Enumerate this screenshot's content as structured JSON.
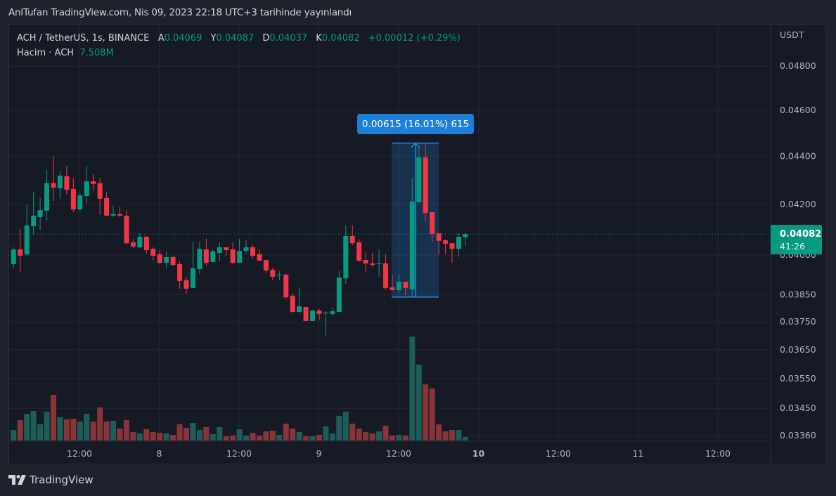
{
  "header": {
    "published": "AnlTufan TradingView.com, Nis 09, 2023 22:18 UTC+3 tarihinde yayınlandı"
  },
  "legend": {
    "symbol": "ACH / TetherUS, 1s, BINANCE",
    "open_label": "A",
    "open": "0.04069",
    "high_label": "Y",
    "high": "0.04087",
    "low_label": "D",
    "low": "0.04037",
    "close_label": "K",
    "close": "0.04082",
    "change": "+0.00012 (+0.29%)",
    "volume_label": "Hacim · ACH",
    "volume": "7.508M"
  },
  "price_axis": {
    "unit": "USDT",
    "ticks": [
      "0.04800",
      "0.04600",
      "0.04400",
      "0.04200",
      "0.04000",
      "0.03850",
      "0.03750",
      "0.03650",
      "0.03550",
      "0.03450",
      "0.03360"
    ],
    "scale": "log"
  },
  "time_axis": {
    "ticks": [
      "12:00",
      "8",
      "12:00",
      "9",
      "12:00",
      "10",
      "12:00",
      "11",
      "12:00"
    ]
  },
  "last_price": {
    "value": "0.04082",
    "countdown": "41:26"
  },
  "measure": {
    "label": "0.00615 (16.01%) 615",
    "low": 0.03841,
    "high": 0.04456
  },
  "footer": {
    "brand": "TradingView"
  },
  "colors": {
    "up": "#089981",
    "down": "#f23645",
    "up_volume": "#1e5d5a",
    "down_volume": "#873538",
    "measure": "#2196f3",
    "background": "#161a25"
  },
  "chart_data": {
    "type": "candlestick",
    "candles": [
      [
        0.03965,
        0.04022,
        0.0403,
        0.03951
      ],
      [
        0.04022,
        0.03997,
        0.04102,
        0.03935
      ],
      [
        0.04003,
        0.04116,
        0.042,
        0.03997
      ],
      [
        0.04113,
        0.04155,
        0.04252,
        0.04079
      ],
      [
        0.04149,
        0.04177,
        0.04226,
        0.04096
      ],
      [
        0.04175,
        0.04287,
        0.04342,
        0.04135
      ],
      [
        0.04287,
        0.04269,
        0.04401,
        0.04214
      ],
      [
        0.04266,
        0.04318,
        0.04336,
        0.04223
      ],
      [
        0.04316,
        0.0426,
        0.0436,
        0.0424
      ],
      [
        0.04263,
        0.0418,
        0.04307,
        0.04169
      ],
      [
        0.0418,
        0.04237,
        0.04246,
        0.04175
      ],
      [
        0.04234,
        0.04295,
        0.0436,
        0.04206
      ],
      [
        0.04295,
        0.04284,
        0.04324,
        0.04257
      ],
      [
        0.04287,
        0.04223,
        0.0431,
        0.04158
      ],
      [
        0.04226,
        0.04155,
        0.04252,
        0.04155
      ],
      [
        0.04155,
        0.04161,
        0.04195,
        0.04152
      ],
      [
        0.04161,
        0.04155,
        0.04192,
        0.04149
      ],
      [
        0.04155,
        0.04046,
        0.04177,
        0.04041
      ],
      [
        0.04049,
        0.04033,
        0.04063,
        0.04027
      ],
      [
        0.0403,
        0.04071,
        0.04085,
        0.04027
      ],
      [
        0.04071,
        0.04019,
        0.04074,
        0.04005
      ],
      [
        0.04024,
        0.03997,
        0.0403,
        0.03978
      ],
      [
        0.04003,
        0.0397,
        0.04016,
        0.03965
      ],
      [
        0.0397,
        0.03992,
        0.04014,
        0.03951
      ],
      [
        0.03992,
        0.03962,
        0.03995,
        0.03959
      ],
      [
        0.03965,
        0.03901,
        0.03976,
        0.03872
      ],
      [
        0.03904,
        0.03872,
        0.03917,
        0.03854
      ],
      [
        0.03875,
        0.03949,
        0.04052,
        0.03875
      ],
      [
        0.03946,
        0.04024,
        0.04052,
        0.03927
      ],
      [
        0.04022,
        0.0397,
        0.04063,
        0.03959
      ],
      [
        0.03973,
        0.04014,
        0.04022,
        0.03973
      ],
      [
        0.04008,
        0.0403,
        0.04049,
        0.03976
      ],
      [
        0.0403,
        0.04019,
        0.0403,
        0.03997
      ],
      [
        0.04022,
        0.0397,
        0.04049,
        0.03965
      ],
      [
        0.0397,
        0.04016,
        0.04063,
        0.0397
      ],
      [
        0.04016,
        0.0403,
        0.04057,
        0.04005
      ],
      [
        0.0403,
        0.03997,
        0.04041,
        0.03986
      ],
      [
        0.04003,
        0.03978,
        0.04022,
        0.03978
      ],
      [
        0.03981,
        0.03941,
        0.03981,
        0.03933
      ],
      [
        0.03943,
        0.03917,
        0.03951,
        0.03904
      ],
      [
        0.03922,
        0.03925,
        0.03938,
        0.03904
      ],
      [
        0.03925,
        0.0384,
        0.0393,
        0.03833
      ],
      [
        0.03846,
        0.03786,
        0.03854,
        0.03784
      ],
      [
        0.03786,
        0.03807,
        0.03877,
        0.03784
      ],
      [
        0.03804,
        0.03753,
        0.03804,
        0.03753
      ],
      [
        0.03753,
        0.03791,
        0.03794,
        0.03753
      ],
      [
        0.03791,
        0.03779,
        0.03797,
        0.03756
      ],
      [
        0.03781,
        0.03784,
        0.03789,
        0.037
      ],
      [
        0.03779,
        0.03789,
        0.03802,
        0.03771
      ],
      [
        0.03786,
        0.03914,
        0.03938,
        0.03786
      ],
      [
        0.03911,
        0.04074,
        0.04116,
        0.0389
      ],
      [
        0.04074,
        0.04046,
        0.04116,
        0.04038
      ],
      [
        0.04049,
        0.03978,
        0.04063,
        0.03973
      ],
      [
        0.03981,
        0.03968,
        0.04011,
        0.03935
      ],
      [
        0.03968,
        0.03962,
        0.04008,
        0.03954
      ],
      [
        0.03965,
        0.03968,
        0.04022,
        0.03917
      ],
      [
        0.03968,
        0.03875,
        0.04003,
        0.03869
      ],
      [
        0.03877,
        0.03867,
        0.03922,
        0.03864
      ],
      [
        0.03867,
        0.03898,
        0.03927,
        0.03854
      ],
      [
        0.03898,
        0.03875,
        0.03898,
        0.03848
      ],
      [
        0.03869,
        0.04212,
        0.04307,
        0.03843
      ],
      [
        0.04209,
        0.04395,
        0.04437,
        0.04209
      ],
      [
        0.04395,
        0.04166,
        0.04456,
        0.04132
      ],
      [
        0.04169,
        0.04082,
        0.04169,
        0.04052
      ],
      [
        0.04085,
        0.04055,
        0.04085,
        0.04003
      ],
      [
        0.04057,
        0.04044,
        0.0406,
        0.04003
      ],
      [
        0.04046,
        0.04024,
        0.04046,
        0.0397
      ],
      [
        0.04024,
        0.04071,
        0.04085,
        0.03992
      ],
      [
        0.04069,
        0.04082,
        0.04087,
        0.04037
      ]
    ],
    "candle_fields": [
      "open",
      "close",
      "high",
      "low"
    ],
    "volume_unit": "M",
    "volumes": [
      22.5,
      43.5,
      57,
      63,
      34.5,
      61.5,
      97.5,
      49.5,
      45,
      46.5,
      40.5,
      57,
      40.5,
      70.5,
      40.5,
      42,
      25.5,
      43.5,
      18,
      15,
      24,
      18,
      16.5,
      15,
      12,
      34.5,
      27,
      37.5,
      22.5,
      28.5,
      13.5,
      28.5,
      9,
      10.5,
      24,
      10.5,
      16.5,
      10.5,
      19.5,
      21,
      12,
      36,
      25.5,
      18,
      9,
      9,
      12,
      30,
      15,
      52.5,
      61.5,
      36,
      25.5,
      18,
      15,
      19.5,
      31.5,
      10.5,
      12,
      10.5,
      222,
      162,
      120,
      111,
      34.5,
      19.5,
      22.5,
      22.5,
      7.5
    ]
  }
}
